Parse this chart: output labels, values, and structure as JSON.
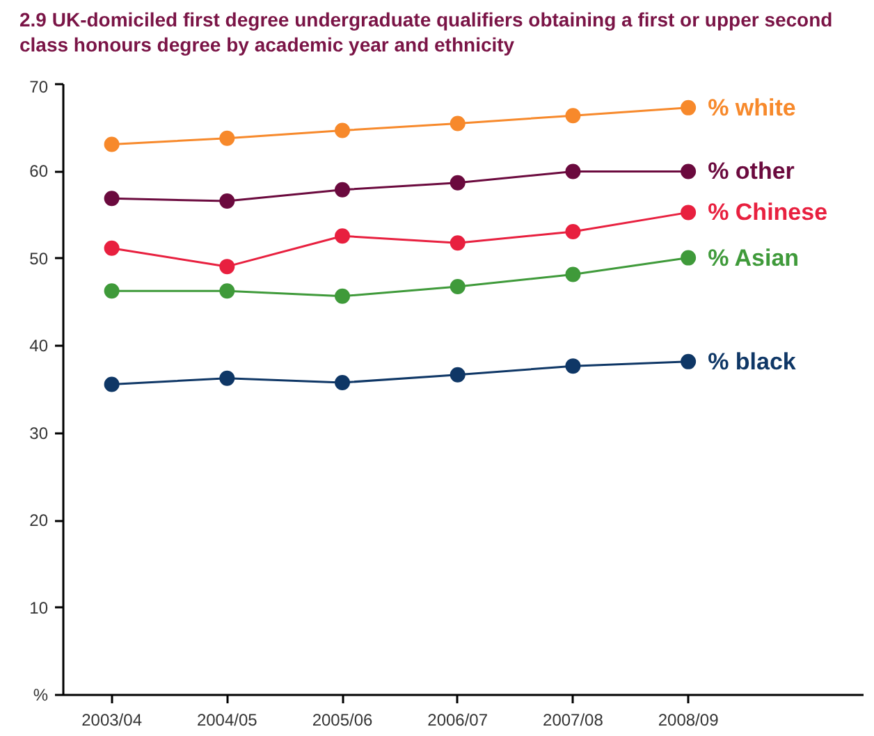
{
  "chart_data": {
    "type": "line",
    "title": "2.9  UK-domiciled first degree undergraduate qualifiers obtaining a first or upper second class honours degree by academic year and ethnicity",
    "ylabel": "%",
    "categories": [
      "2003/04",
      "2004/05",
      "2005/06",
      "2006/07",
      "2007/08",
      "2008/09"
    ],
    "series": [
      {
        "name": "% white",
        "color": "#f7892b",
        "values": [
          63.1,
          63.8,
          64.7,
          65.5,
          66.4,
          67.3
        ]
      },
      {
        "name": "% other",
        "color": "#6b0a3e",
        "values": [
          56.9,
          56.6,
          57.9,
          58.7,
          60.0,
          60.0
        ]
      },
      {
        "name": "% Chinese",
        "color": "#e8203f",
        "values": [
          51.2,
          49.1,
          52.6,
          51.8,
          53.1,
          55.3
        ]
      },
      {
        "name": "% Asian",
        "color": "#3f9a3a",
        "values": [
          46.3,
          46.3,
          45.7,
          46.8,
          48.2,
          50.1
        ]
      },
      {
        "name": "% black",
        "color": "#0f3766",
        "values": [
          35.6,
          36.3,
          35.8,
          36.7,
          37.7,
          38.2
        ]
      }
    ],
    "ylim": [
      0,
      70
    ],
    "yticks": [
      10,
      20,
      30,
      40,
      50,
      60,
      70
    ],
    "marker": "circle",
    "line_style": "solid",
    "grid": false
  }
}
